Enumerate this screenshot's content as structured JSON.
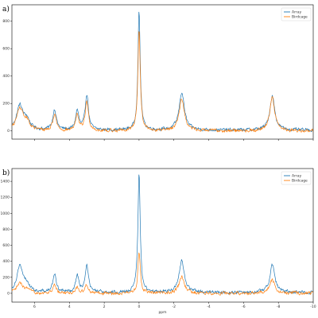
{
  "chart_data": [
    {
      "type": "line",
      "panel_label": "a)",
      "xlabel": "",
      "ylabel": "",
      "xlim": [
        7.3,
        -10
      ],
      "ylim": [
        -60,
        920
      ],
      "x_ticks": [],
      "y_ticks": [
        0,
        200,
        400,
        600,
        800
      ],
      "legend": {
        "position": "top-right",
        "entries": [
          "Array",
          "Birdcage"
        ]
      },
      "colors": {
        "Array": "#1f77b4",
        "Birdcage": "#ff7f0e"
      },
      "series": [
        {
          "name": "Array",
          "baseline": 5,
          "peaks": [
            {
              "x": 6.85,
              "h": 175,
              "w": 0.22
            },
            {
              "x": 6.45,
              "h": 70,
              "w": 0.2
            },
            {
              "x": 4.85,
              "h": 150,
              "w": 0.12
            },
            {
              "x": 3.55,
              "h": 140,
              "w": 0.11
            },
            {
              "x": 3.0,
              "h": 260,
              "w": 0.11
            },
            {
              "x": 0.0,
              "h": 860,
              "w": 0.08
            },
            {
              "x": -2.45,
              "h": 275,
              "w": 0.18
            },
            {
              "x": -7.65,
              "h": 250,
              "w": 0.17
            }
          ]
        },
        {
          "name": "Birdcage",
          "baseline": 0,
          "peaks": [
            {
              "x": 6.85,
              "h": 160,
              "w": 0.22
            },
            {
              "x": 6.45,
              "h": 60,
              "w": 0.2
            },
            {
              "x": 4.85,
              "h": 120,
              "w": 0.12
            },
            {
              "x": 3.55,
              "h": 110,
              "w": 0.11
            },
            {
              "x": 3.0,
              "h": 215,
              "w": 0.11
            },
            {
              "x": 0.0,
              "h": 740,
              "w": 0.08
            },
            {
              "x": -2.45,
              "h": 235,
              "w": 0.18
            },
            {
              "x": -7.65,
              "h": 245,
              "w": 0.17
            }
          ]
        }
      ]
    },
    {
      "type": "line",
      "panel_label": "b)",
      "xlabel": "ppm",
      "ylabel": "",
      "xlim": [
        7.3,
        -10
      ],
      "ylim": [
        -110,
        1560
      ],
      "x_ticks": [
        6,
        4,
        2,
        0,
        -2,
        -4,
        -6,
        -8,
        -10
      ],
      "y_ticks": [
        0,
        200,
        400,
        600,
        800,
        1000,
        1200,
        1400
      ],
      "legend": {
        "position": "top-right",
        "entries": [
          "Array",
          "Birdcage"
        ]
      },
      "colors": {
        "Array": "#1f77b4",
        "Birdcage": "#ff7f0e"
      },
      "series": [
        {
          "name": "Array",
          "baseline": 10,
          "peaks": [
            {
              "x": 6.85,
              "h": 330,
              "w": 0.2
            },
            {
              "x": 6.45,
              "h": 90,
              "w": 0.2
            },
            {
              "x": 4.85,
              "h": 220,
              "w": 0.12
            },
            {
              "x": 3.55,
              "h": 215,
              "w": 0.11
            },
            {
              "x": 3.0,
              "h": 330,
              "w": 0.11
            },
            {
              "x": 0.0,
              "h": 1480,
              "w": 0.08
            },
            {
              "x": -2.45,
              "h": 400,
              "w": 0.18
            },
            {
              "x": -7.65,
              "h": 350,
              "w": 0.17
            }
          ]
        },
        {
          "name": "Birdcage",
          "baseline": 0,
          "peaks": [
            {
              "x": 6.85,
              "h": 120,
              "w": 0.2
            },
            {
              "x": 6.45,
              "h": 40,
              "w": 0.2
            },
            {
              "x": 4.85,
              "h": 95,
              "w": 0.12
            },
            {
              "x": 3.55,
              "h": 70,
              "w": 0.11
            },
            {
              "x": 3.0,
              "h": 110,
              "w": 0.11
            },
            {
              "x": 0.0,
              "h": 530,
              "w": 0.08
            },
            {
              "x": -2.45,
              "h": 200,
              "w": 0.18
            },
            {
              "x": -7.65,
              "h": 165,
              "w": 0.17
            }
          ]
        }
      ]
    }
  ]
}
